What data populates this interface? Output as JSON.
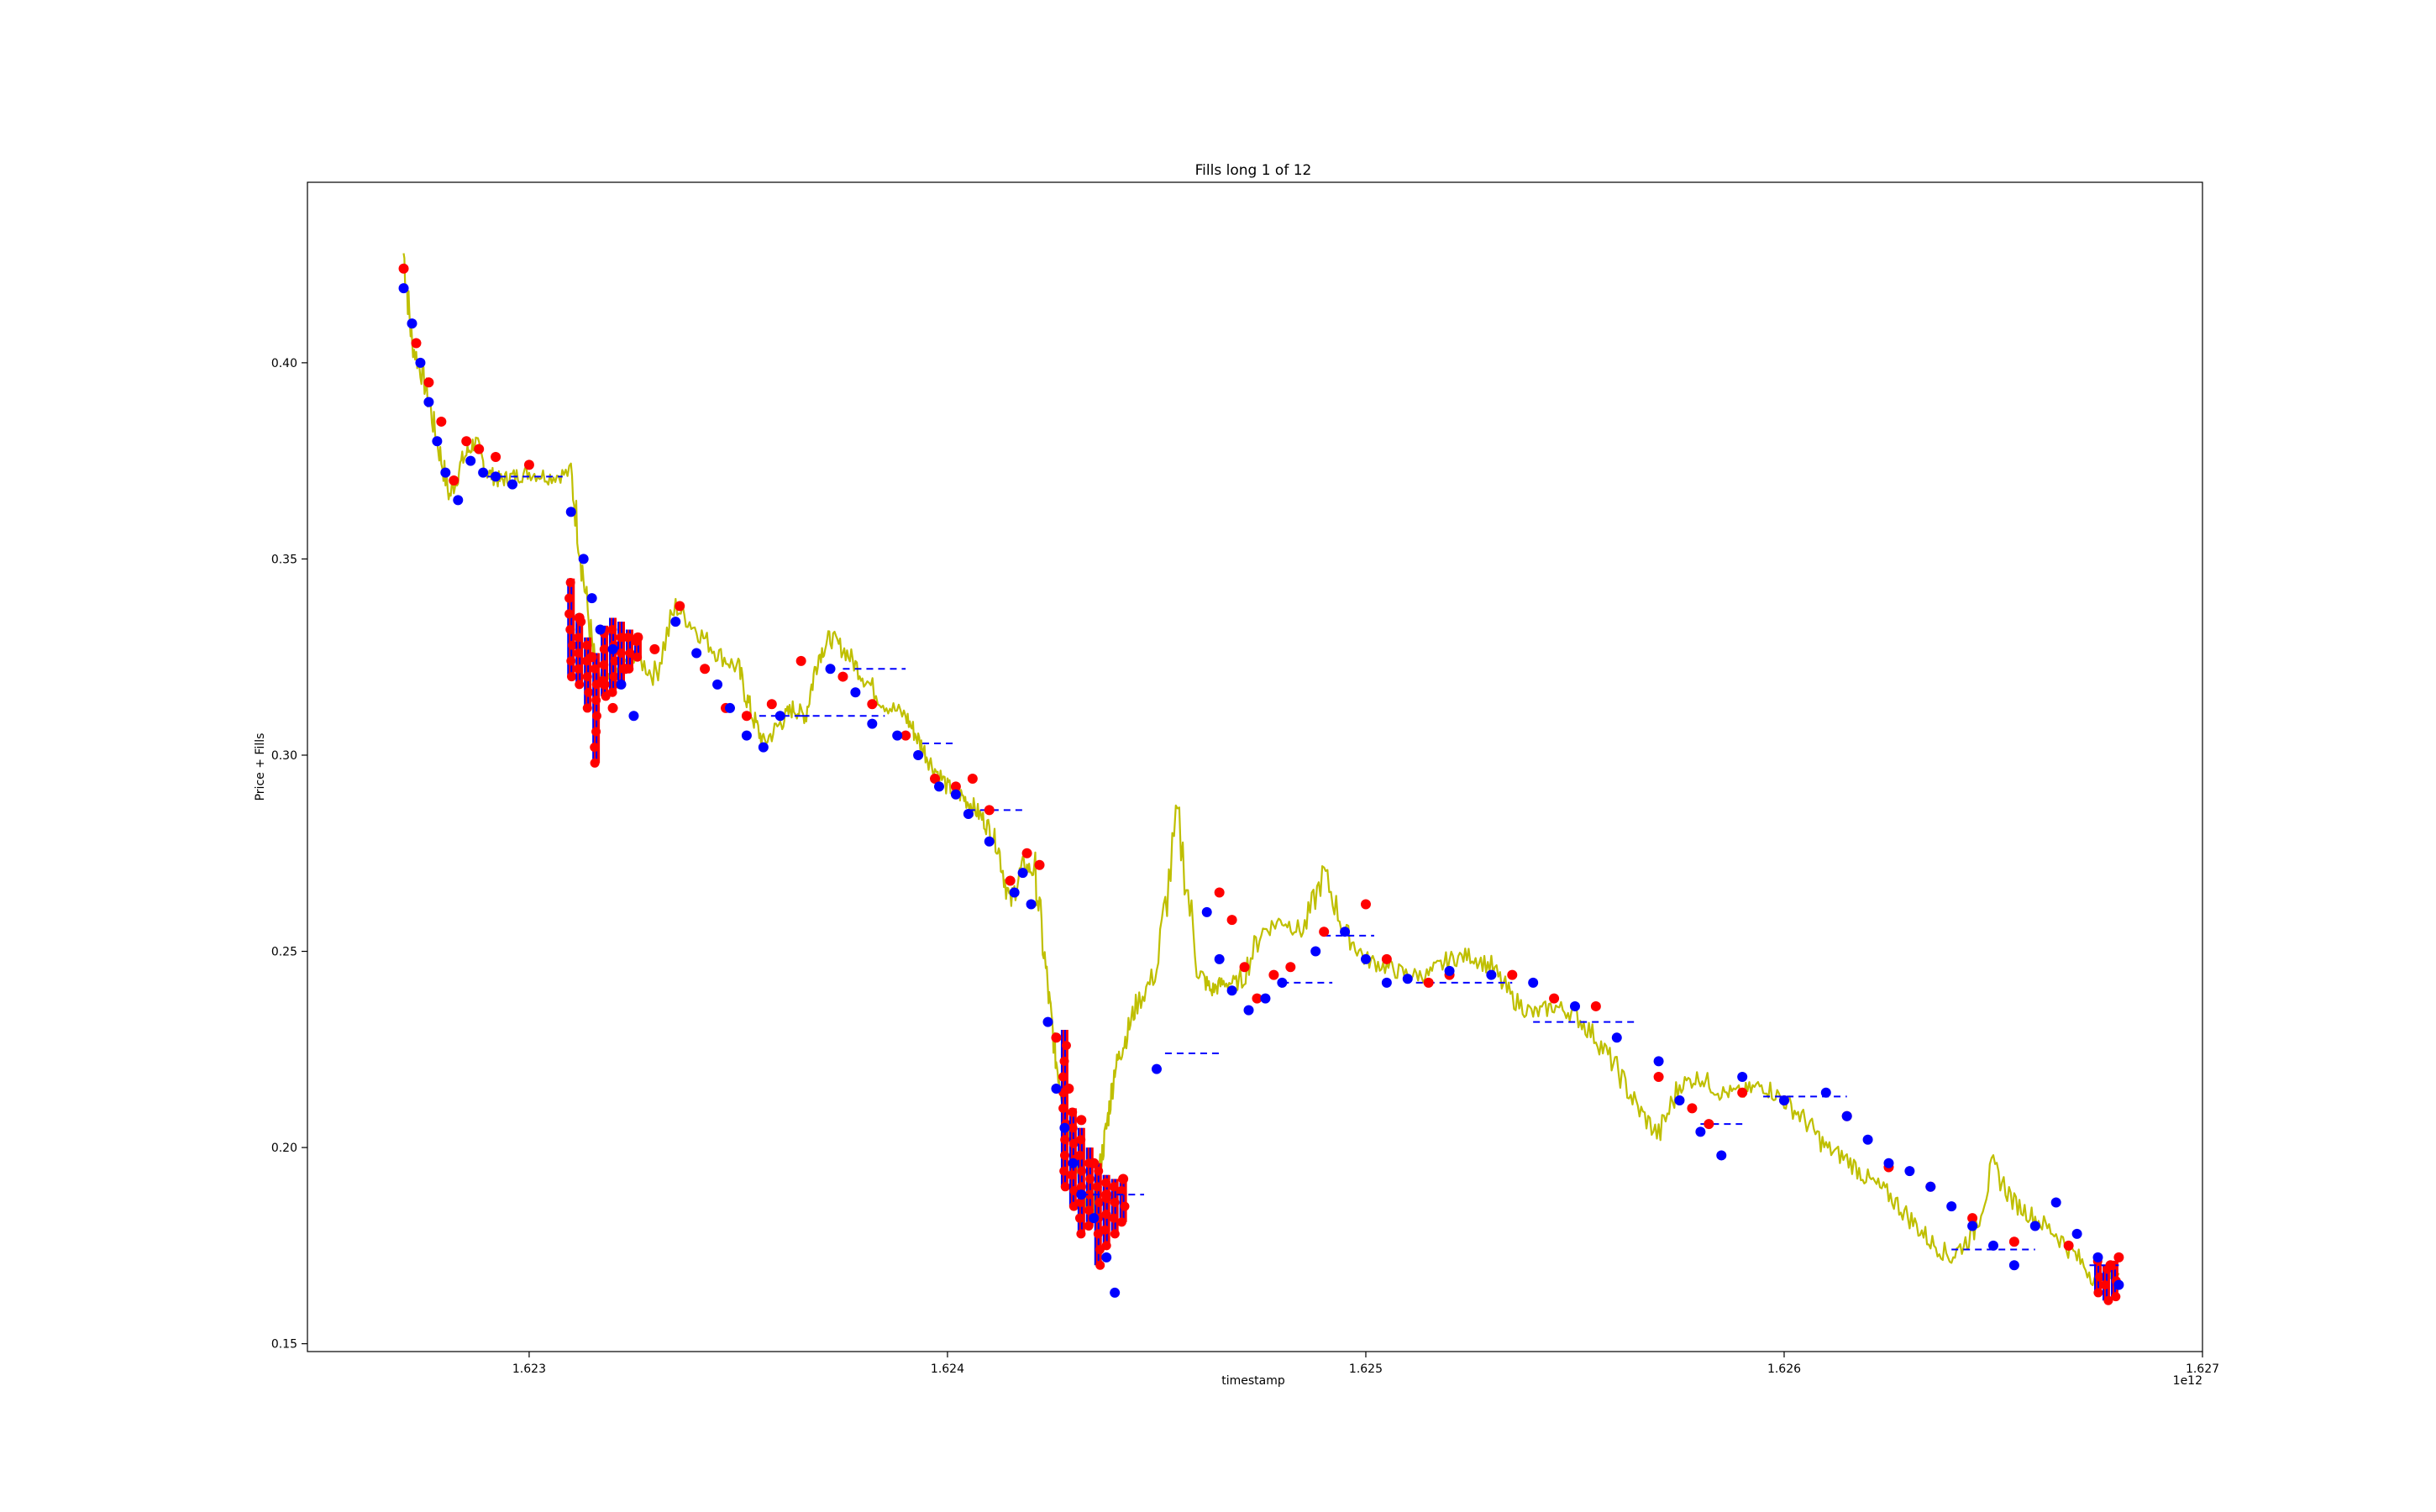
{
  "chart_data": {
    "type": "line",
    "title": "Fills long 1 of 12",
    "xlabel": "timestamp",
    "ylabel": "Price + Fills",
    "x_offset_label": "1e12",
    "x_ticks": [
      1.623,
      1.624,
      1.625,
      1.626,
      1.627
    ],
    "x_tick_labels": [
      "1.623",
      "1.624",
      "1.625",
      "1.626",
      "1.627"
    ],
    "y_ticks": [
      0.15,
      0.2,
      0.25,
      0.3,
      0.35,
      0.4
    ],
    "y_tick_labels": [
      "0.15",
      "0.20",
      "0.25",
      "0.30",
      "0.35",
      "0.40"
    ],
    "xlim": [
      1.62247,
      1.627
    ],
    "ylim": [
      0.148,
      0.446
    ],
    "colors": {
      "price": "#bfbf00",
      "entry_fills": "#0000ff",
      "close_fills": "#ff0000",
      "position_price": "#0000ff",
      "liquidation_marks": "#0000ff"
    },
    "series": [
      {
        "kind": "price_line",
        "x": [
          1.6227,
          1.62272,
          1.62275,
          1.62278,
          1.62281,
          1.62284,
          1.62287,
          1.6229,
          1.62293,
          1.62296,
          1.623,
          1.62305,
          1.6231,
          1.62313,
          1.62316,
          1.6232,
          1.62325,
          1.6233,
          1.62335,
          1.6234,
          1.62345,
          1.6235,
          1.62353,
          1.62356,
          1.6236,
          1.62363,
          1.62366,
          1.62369,
          1.62372,
          1.62376,
          1.6238,
          1.62385,
          1.6239,
          1.62393,
          1.62396,
          1.624,
          1.62403,
          1.62406,
          1.62409,
          1.62412,
          1.62415,
          1.62418,
          1.62421,
          1.62424,
          1.62426,
          1.62428,
          1.6243,
          1.62432,
          1.62434,
          1.62436,
          1.62438,
          1.6244,
          1.62442,
          1.62445,
          1.6245,
          1.62455,
          1.6246,
          1.62463,
          1.62466,
          1.6247,
          1.62475,
          1.6248,
          1.62485,
          1.6249,
          1.62495,
          1.625,
          1.62505,
          1.6251,
          1.62515,
          1.6252,
          1.62525,
          1.6253,
          1.62535,
          1.6254,
          1.62545,
          1.6255,
          1.62555,
          1.6256,
          1.62565,
          1.6257,
          1.62575,
          1.6258,
          1.62585,
          1.6259,
          1.62595,
          1.626,
          1.62605,
          1.6261,
          1.62615,
          1.6262,
          1.62625,
          1.6263,
          1.62635,
          1.6264,
          1.62645,
          1.6265,
          1.62655,
          1.6266,
          1.62665,
          1.6267,
          1.62675,
          1.6268
        ],
        "y": [
          0.428,
          0.405,
          0.395,
          0.38,
          0.366,
          0.375,
          0.38,
          0.372,
          0.37,
          0.371,
          0.372,
          0.371,
          0.372,
          0.345,
          0.32,
          0.318,
          0.326,
          0.32,
          0.338,
          0.332,
          0.326,
          0.322,
          0.311,
          0.303,
          0.308,
          0.312,
          0.31,
          0.325,
          0.33,
          0.326,
          0.32,
          0.313,
          0.31,
          0.304,
          0.298,
          0.292,
          0.29,
          0.287,
          0.283,
          0.277,
          0.262,
          0.272,
          0.27,
          0.24,
          0.222,
          0.21,
          0.2,
          0.19,
          0.18,
          0.192,
          0.205,
          0.22,
          0.226,
          0.236,
          0.245,
          0.284,
          0.245,
          0.24,
          0.242,
          0.242,
          0.255,
          0.258,
          0.255,
          0.27,
          0.255,
          0.248,
          0.246,
          0.244,
          0.244,
          0.248,
          0.249,
          0.246,
          0.238,
          0.234,
          0.236,
          0.234,
          0.228,
          0.22,
          0.21,
          0.203,
          0.216,
          0.218,
          0.214,
          0.214,
          0.216,
          0.212,
          0.207,
          0.2,
          0.197,
          0.192,
          0.188,
          0.182,
          0.176,
          0.172,
          0.178,
          0.195,
          0.186,
          0.182,
          0.178,
          0.172,
          0.166,
          0.168
        ]
      },
      {
        "kind": "entry_fills",
        "x": [
          1.6227,
          1.62272,
          1.62274,
          1.62276,
          1.62278,
          1.6228,
          1.62283,
          1.62286,
          1.62289,
          1.62292,
          1.62296,
          1.6231,
          1.62313,
          1.62315,
          1.62317,
          1.6232,
          1.62322,
          1.62325,
          1.62335,
          1.6234,
          1.62345,
          1.62348,
          1.62352,
          1.62356,
          1.6236,
          1.62372,
          1.62378,
          1.62382,
          1.62388,
          1.62393,
          1.62398,
          1.62402,
          1.62405,
          1.6241,
          1.62416,
          1.62418,
          1.6242,
          1.62424,
          1.62426,
          1.62428,
          1.6243,
          1.62432,
          1.62435,
          1.62438,
          1.6244,
          1.6245,
          1.62462,
          1.62465,
          1.62468,
          1.62472,
          1.62476,
          1.6248,
          1.62488,
          1.62495,
          1.625,
          1.62505,
          1.6251,
          1.6252,
          1.6253,
          1.6254,
          1.6255,
          1.6256,
          1.6257,
          1.62575,
          1.6258,
          1.62585,
          1.6259,
          1.626,
          1.6261,
          1.62615,
          1.6262,
          1.62625,
          1.6263,
          1.62635,
          1.6264,
          1.62645,
          1.6265,
          1.62655,
          1.6266,
          1.62665,
          1.6267,
          1.62675,
          1.6268
        ],
        "y": [
          0.419,
          0.41,
          0.4,
          0.39,
          0.38,
          0.372,
          0.365,
          0.375,
          0.372,
          0.371,
          0.369,
          0.362,
          0.35,
          0.34,
          0.332,
          0.327,
          0.318,
          0.31,
          0.334,
          0.326,
          0.318,
          0.312,
          0.305,
          0.302,
          0.31,
          0.322,
          0.316,
          0.308,
          0.305,
          0.3,
          0.292,
          0.29,
          0.285,
          0.278,
          0.265,
          0.27,
          0.262,
          0.232,
          0.215,
          0.205,
          0.196,
          0.188,
          0.182,
          0.172,
          0.163,
          0.22,
          0.26,
          0.248,
          0.24,
          0.235,
          0.238,
          0.242,
          0.25,
          0.255,
          0.248,
          0.242,
          0.243,
          0.245,
          0.244,
          0.242,
          0.236,
          0.228,
          0.222,
          0.212,
          0.204,
          0.198,
          0.218,
          0.212,
          0.214,
          0.208,
          0.202,
          0.196,
          0.194,
          0.19,
          0.185,
          0.18,
          0.175,
          0.17,
          0.18,
          0.186,
          0.178,
          0.172,
          0.165
        ]
      },
      {
        "kind": "close_fills",
        "x": [
          1.6227,
          1.62273,
          1.62276,
          1.62279,
          1.62282,
          1.62285,
          1.62288,
          1.62292,
          1.623,
          1.62312,
          1.62315,
          1.62318,
          1.6232,
          1.62323,
          1.62326,
          1.6233,
          1.62336,
          1.62342,
          1.62347,
          1.62352,
          1.62358,
          1.62365,
          1.62375,
          1.62382,
          1.6239,
          1.62397,
          1.62402,
          1.62406,
          1.6241,
          1.62415,
          1.62419,
          1.62422,
          1.62426,
          1.62429,
          1.62432,
          1.62435,
          1.62438,
          1.62442,
          1.62465,
          1.62468,
          1.62471,
          1.62474,
          1.62478,
          1.62482,
          1.6249,
          1.625,
          1.62505,
          1.62515,
          1.6252,
          1.62535,
          1.62545,
          1.62555,
          1.6257,
          1.62578,
          1.62582,
          1.6259,
          1.626,
          1.62615,
          1.62625,
          1.62635,
          1.62645,
          1.62655,
          1.62668,
          1.62678,
          1.6268
        ],
        "y": [
          0.424,
          0.405,
          0.395,
          0.385,
          0.37,
          0.38,
          0.378,
          0.376,
          0.374,
          0.335,
          0.325,
          0.318,
          0.312,
          0.322,
          0.33,
          0.327,
          0.338,
          0.322,
          0.312,
          0.31,
          0.313,
          0.324,
          0.32,
          0.313,
          0.305,
          0.294,
          0.292,
          0.294,
          0.286,
          0.268,
          0.275,
          0.272,
          0.228,
          0.215,
          0.207,
          0.196,
          0.188,
          0.192,
          0.265,
          0.258,
          0.246,
          0.238,
          0.244,
          0.246,
          0.255,
          0.262,
          0.248,
          0.242,
          0.244,
          0.244,
          0.238,
          0.236,
          0.218,
          0.21,
          0.206,
          0.214,
          0.212,
          0.208,
          0.195,
          0.19,
          0.182,
          0.176,
          0.175,
          0.17,
          0.172
        ]
      },
      {
        "kind": "position_price",
        "segments": [
          [
            1.6229,
            1.62308,
            0.371
          ],
          [
            1.62355,
            1.62367,
            0.31
          ],
          [
            1.62365,
            1.62385,
            0.31
          ],
          [
            1.62375,
            1.6239,
            0.322
          ],
          [
            1.62394,
            1.62402,
            0.303
          ],
          [
            1.62405,
            1.62418,
            0.286
          ],
          [
            1.62432,
            1.62447,
            0.188
          ],
          [
            1.62452,
            1.62465,
            0.224
          ],
          [
            1.6248,
            1.62492,
            0.242
          ],
          [
            1.6249,
            1.62502,
            0.254
          ],
          [
            1.62512,
            1.62535,
            0.242
          ],
          [
            1.6254,
            1.62565,
            0.232
          ],
          [
            1.6258,
            1.6259,
            0.206
          ],
          [
            1.62595,
            1.62615,
            0.213
          ],
          [
            1.6264,
            1.6266,
            0.174
          ],
          [
            1.62673,
            1.6268,
            0.17
          ]
        ]
      },
      {
        "kind": "fill_clusters",
        "x": [
          1.6231,
          1.62312,
          1.62314,
          1.62316,
          1.62318,
          1.6232,
          1.62322,
          1.62324,
          1.62326,
          1.62428,
          1.6243,
          1.62432,
          1.62434,
          1.62436,
          1.62438,
          1.6244,
          1.62442,
          1.62675,
          1.62677,
          1.62679
        ],
        "y_low": [
          0.32,
          0.318,
          0.312,
          0.298,
          0.315,
          0.316,
          0.318,
          0.322,
          0.325,
          0.19,
          0.185,
          0.178,
          0.18,
          0.17,
          0.175,
          0.178,
          0.181,
          0.163,
          0.161,
          0.162
        ],
        "y_high": [
          0.345,
          0.336,
          0.33,
          0.326,
          0.333,
          0.335,
          0.334,
          0.332,
          0.331,
          0.23,
          0.21,
          0.205,
          0.2,
          0.196,
          0.193,
          0.192,
          0.192,
          0.172,
          0.17,
          0.171
        ]
      }
    ],
    "grid": false,
    "legend": "none"
  }
}
